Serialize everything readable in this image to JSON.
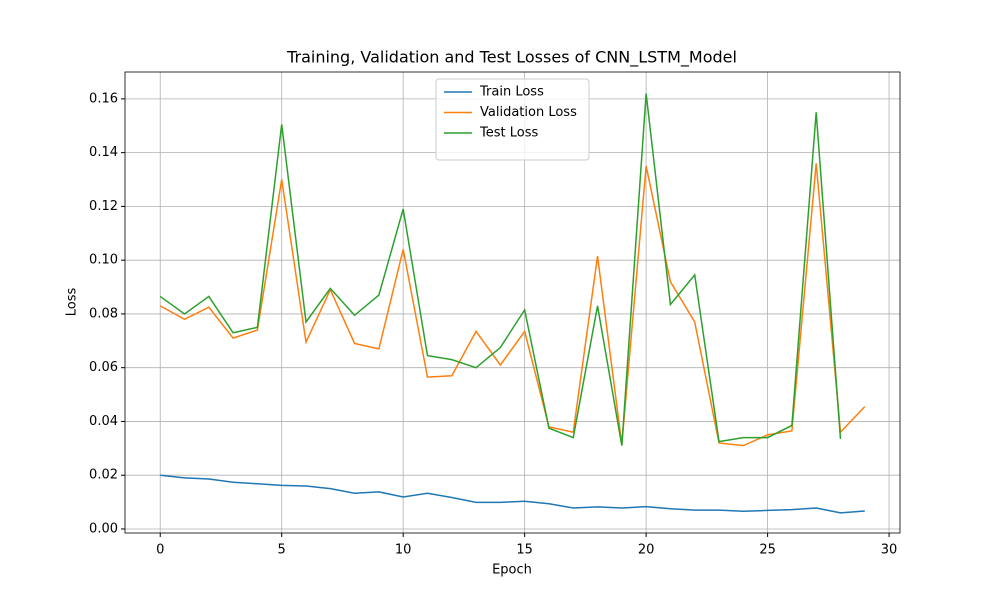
{
  "chart_data": {
    "type": "line",
    "title": "Training, Validation and Test Losses of CNN_LSTM_Model",
    "xlabel": "Epoch",
    "ylabel": "Loss",
    "x": [
      0,
      1,
      2,
      3,
      4,
      5,
      6,
      7,
      8,
      9,
      10,
      11,
      12,
      13,
      14,
      15,
      16,
      17,
      18,
      19,
      20,
      21,
      22,
      23,
      24,
      25,
      26,
      27,
      28,
      29
    ],
    "series": [
      {
        "name": "Train Loss",
        "color": "#1f77b4",
        "values": [
          0.02,
          0.019,
          0.0186,
          0.0174,
          0.0168,
          0.0162,
          0.016,
          0.015,
          0.0133,
          0.0138,
          0.0119,
          0.0133,
          0.0117,
          0.0099,
          0.0099,
          0.0103,
          0.0094,
          0.0078,
          0.0082,
          0.0078,
          0.0083,
          0.0075,
          0.007,
          0.007,
          0.0066,
          0.0069,
          0.0072,
          0.0078,
          0.006,
          0.0067
        ]
      },
      {
        "name": "Validation Loss",
        "color": "#ff7f0e",
        "values": [
          0.083,
          0.078,
          0.0825,
          0.071,
          0.074,
          0.13,
          0.0695,
          0.089,
          0.069,
          0.067,
          0.104,
          0.0565,
          0.057,
          0.0735,
          0.061,
          0.0735,
          0.038,
          0.036,
          0.1015,
          0.0315,
          0.135,
          0.092,
          0.077,
          0.032,
          0.031,
          0.035,
          0.0365,
          0.136,
          0.036,
          0.0455
        ]
      },
      {
        "name": "Test Loss",
        "color": "#2ca02c",
        "values": [
          0.0865,
          0.08,
          0.0865,
          0.073,
          0.075,
          0.1505,
          0.077,
          0.0895,
          0.0795,
          0.087,
          0.119,
          0.0645,
          0.063,
          0.06,
          0.0675,
          0.0815,
          0.0375,
          0.034,
          0.083,
          0.031,
          0.162,
          0.0835,
          0.0945,
          0.0325,
          0.034,
          0.034,
          0.0385,
          0.155,
          0.0335,
          null
        ]
      }
    ],
    "xlim": [
      -1.45,
      30.45
    ],
    "xticks": [
      0,
      5,
      10,
      15,
      20,
      25,
      30
    ],
    "ylim": [
      -0.0015,
      0.17
    ],
    "yticks": [
      {
        "value": 0,
        "label": "0.00"
      },
      {
        "value": 0.02,
        "label": "0.02"
      },
      {
        "value": 0.04,
        "label": "0.04"
      },
      {
        "value": 0.06,
        "label": "0.06"
      },
      {
        "value": 0.08,
        "label": "0.08"
      },
      {
        "value": 0.1,
        "label": "0.10"
      },
      {
        "value": 0.12,
        "label": "0.12"
      },
      {
        "value": 0.14,
        "label": "0.14"
      },
      {
        "value": 0.16,
        "label": "0.16"
      }
    ],
    "grid": true,
    "legend": "upper center"
  }
}
